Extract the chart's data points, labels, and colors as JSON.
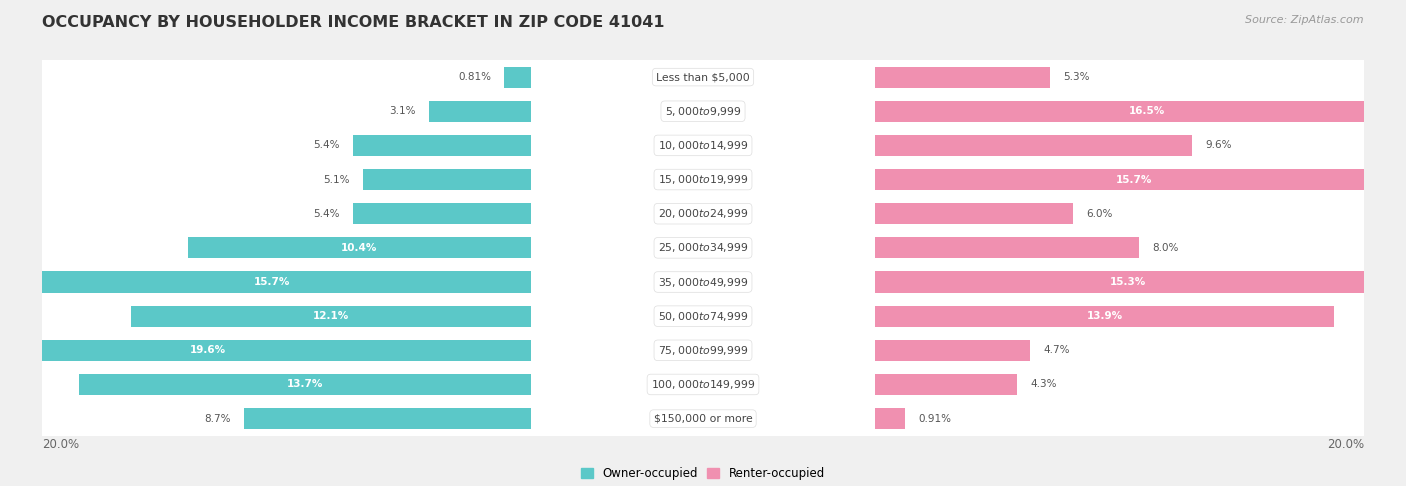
{
  "title": "OCCUPANCY BY HOUSEHOLDER INCOME BRACKET IN ZIP CODE 41041",
  "source": "Source: ZipAtlas.com",
  "categories": [
    "Less than $5,000",
    "$5,000 to $9,999",
    "$10,000 to $14,999",
    "$15,000 to $19,999",
    "$20,000 to $24,999",
    "$25,000 to $34,999",
    "$35,000 to $49,999",
    "$50,000 to $74,999",
    "$75,000 to $99,999",
    "$100,000 to $149,999",
    "$150,000 or more"
  ],
  "owner_values": [
    0.81,
    3.1,
    5.4,
    5.1,
    5.4,
    10.4,
    15.7,
    12.1,
    19.6,
    13.7,
    8.7
  ],
  "renter_values": [
    5.3,
    16.5,
    9.6,
    15.7,
    6.0,
    8.0,
    15.3,
    13.9,
    4.7,
    4.3,
    0.91
  ],
  "owner_color": "#5BC8C8",
  "renter_color": "#F090B0",
  "background_color": "#F0F0F0",
  "row_color": "#FFFFFF",
  "axis_limit": 20.0,
  "legend_owner": "Owner-occupied",
  "legend_renter": "Renter-occupied",
  "title_fontsize": 11.5,
  "bar_height": 0.62
}
